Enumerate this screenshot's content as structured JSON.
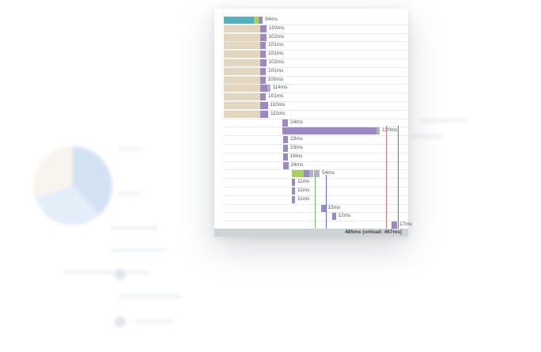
{
  "colors": {
    "blocking": "#e3d6bf",
    "dns": "#4fb3c4",
    "connect": "#a6d45a",
    "wait": "#b0b3b7",
    "receive": "#9c88c4",
    "dom_line": "#5d6fd8",
    "onload_line": "#e07a72",
    "first_line": "#73c26a"
  },
  "rows": [
    {
      "label": "94ms",
      "segments": [
        {
          "type": "dns",
          "start": 0,
          "dur": 76
        },
        {
          "type": "connect",
          "start": 76,
          "dur": 12
        },
        {
          "type": "receive",
          "start": 88,
          "dur": 10
        }
      ]
    },
    {
      "label": "103ms",
      "segments": [
        {
          "type": "blocking",
          "start": 0,
          "dur": 92
        },
        {
          "type": "receive",
          "start": 92,
          "dur": 16
        }
      ]
    },
    {
      "label": "102ms",
      "segments": [
        {
          "type": "blocking",
          "start": 0,
          "dur": 92
        },
        {
          "type": "receive",
          "start": 92,
          "dur": 15
        }
      ]
    },
    {
      "label": "101ms",
      "segments": [
        {
          "type": "blocking",
          "start": 0,
          "dur": 92
        },
        {
          "type": "receive",
          "start": 92,
          "dur": 14
        }
      ]
    },
    {
      "label": "101ms",
      "segments": [
        {
          "type": "blocking",
          "start": 0,
          "dur": 92
        },
        {
          "type": "receive",
          "start": 92,
          "dur": 14
        }
      ]
    },
    {
      "label": "102ms",
      "segments": [
        {
          "type": "blocking",
          "start": 0,
          "dur": 92
        },
        {
          "type": "receive",
          "start": 92,
          "dur": 15
        }
      ]
    },
    {
      "label": "101ms",
      "segments": [
        {
          "type": "blocking",
          "start": 0,
          "dur": 92
        },
        {
          "type": "receive",
          "start": 92,
          "dur": 14
        }
      ]
    },
    {
      "label": "100ms",
      "segments": [
        {
          "type": "blocking",
          "start": 0,
          "dur": 92
        },
        {
          "type": "receive",
          "start": 92,
          "dur": 13
        }
      ]
    },
    {
      "label": "114ms",
      "segments": [
        {
          "type": "blocking",
          "start": 0,
          "dur": 92
        },
        {
          "type": "receive",
          "start": 92,
          "dur": 17
        },
        {
          "type": "wait",
          "start": 109,
          "dur": 8
        }
      ]
    },
    {
      "label": "101ms",
      "segments": [
        {
          "type": "blocking",
          "start": 0,
          "dur": 92
        },
        {
          "type": "receive",
          "start": 92,
          "dur": 14
        }
      ]
    },
    {
      "label": "110ms",
      "segments": [
        {
          "type": "blocking",
          "start": 0,
          "dur": 92
        },
        {
          "type": "receive",
          "start": 92,
          "dur": 19
        }
      ]
    },
    {
      "label": "111ms",
      "segments": [
        {
          "type": "blocking",
          "start": 0,
          "dur": 92
        },
        {
          "type": "receive",
          "start": 92,
          "dur": 20
        }
      ]
    },
    {
      "label": "24ms",
      "segments": [
        {
          "type": "receive",
          "start": 148,
          "dur": 14
        }
      ]
    },
    {
      "label": "120ms",
      "segments": [
        {
          "type": "receive",
          "start": 148,
          "dur": 238
        },
        {
          "type": "wait",
          "start": 386,
          "dur": 8
        }
      ]
    },
    {
      "label": "23ms",
      "segments": [
        {
          "type": "receive",
          "start": 150,
          "dur": 12
        }
      ]
    },
    {
      "label": "23ms",
      "segments": [
        {
          "type": "receive",
          "start": 150,
          "dur": 12
        }
      ]
    },
    {
      "label": "19ms",
      "segments": [
        {
          "type": "receive",
          "start": 149,
          "dur": 12
        }
      ]
    },
    {
      "label": "24ms",
      "segments": [
        {
          "type": "receive",
          "start": 149,
          "dur": 14
        }
      ]
    },
    {
      "label": "54ms",
      "segments": [
        {
          "type": "connect",
          "start": 172,
          "dur": 30
        },
        {
          "type": "receive",
          "start": 202,
          "dur": 14
        },
        {
          "type": "wait",
          "start": 216,
          "dur": 10
        },
        {
          "type": "wait",
          "start": 228,
          "dur": 14
        }
      ]
    },
    {
      "label": "11ms",
      "segments": [
        {
          "type": "receive",
          "start": 172,
          "dur": 8
        }
      ]
    },
    {
      "label": "11ms",
      "segments": [
        {
          "type": "receive",
          "start": 172,
          "dur": 8
        }
      ]
    },
    {
      "label": "11ms",
      "segments": [
        {
          "type": "receive",
          "start": 172,
          "dur": 8
        }
      ]
    },
    {
      "label": "15ms",
      "segments": [
        {
          "type": "receive",
          "start": 246,
          "dur": 11
        }
      ]
    },
    {
      "label": "12ms",
      "segments": [
        {
          "type": "receive",
          "start": 274,
          "dur": 9
        }
      ]
    },
    {
      "label": "17ms",
      "segments": [
        {
          "type": "receive",
          "start": 424,
          "dur": 14
        }
      ]
    }
  ],
  "markers": {
    "first_ms": 230,
    "dom_ms": 258,
    "onload_ms": 410,
    "end_ms": 440
  },
  "footer": {
    "summary": "485ms (onload: 467ms)"
  }
}
